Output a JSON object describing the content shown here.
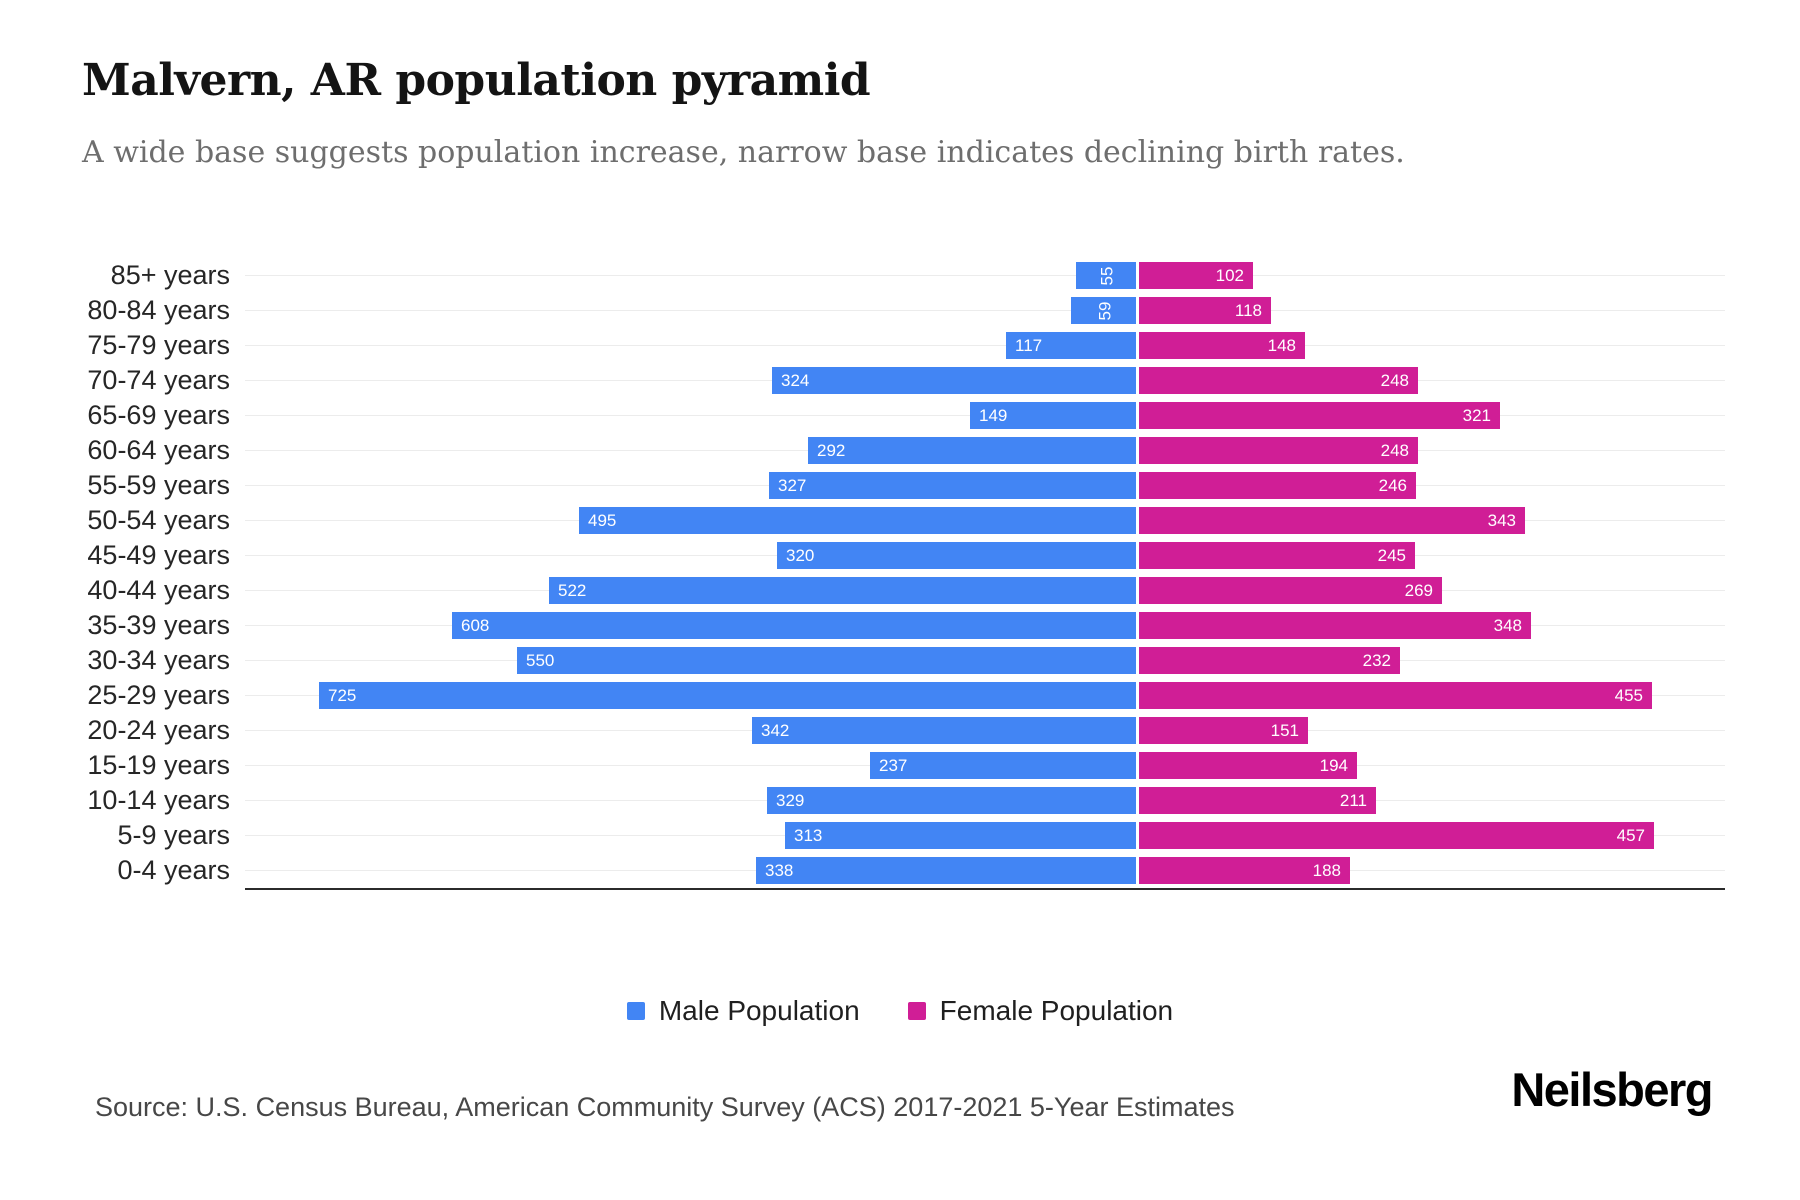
{
  "header": {
    "title": "Malvern, AR population pyramid",
    "subtitle": "A wide base suggests population increase, narrow base indicates declining birth rates."
  },
  "chart_data": {
    "type": "bar",
    "variant": "population_pyramid",
    "orientation": "horizontal",
    "title": "Malvern, AR population pyramid",
    "categories": [
      "85+ years",
      "80-84 years",
      "75-79 years",
      "70-74 years",
      "65-69 years",
      "60-64 years",
      "55-59 years",
      "50-54 years",
      "45-49 years",
      "40-44 years",
      "35-39 years",
      "30-34 years",
      "25-29 years",
      "20-24 years",
      "15-19 years",
      "10-14 years",
      "5-9 years",
      "0-4 years"
    ],
    "series": [
      {
        "name": "Male Population",
        "side": "left",
        "color": "#4285f4",
        "values": [
          55,
          59,
          117,
          324,
          149,
          292,
          327,
          495,
          320,
          522,
          608,
          550,
          725,
          342,
          237,
          329,
          313,
          338
        ]
      },
      {
        "name": "Female Population",
        "side": "right",
        "color": "#d01e96",
        "values": [
          102,
          118,
          148,
          248,
          321,
          248,
          246,
          343,
          245,
          269,
          348,
          232,
          455,
          151,
          194,
          211,
          457,
          188
        ]
      }
    ],
    "value_labels_shown": true,
    "gridlines": "horizontal",
    "legend_position": "bottom-center",
    "x_max_per_side": 790
  },
  "footer": {
    "source": "Source: U.S. Census Bureau, American Community Survey (ACS) 2017-2021 5-Year Estimates",
    "brand": "Neilsberg"
  }
}
